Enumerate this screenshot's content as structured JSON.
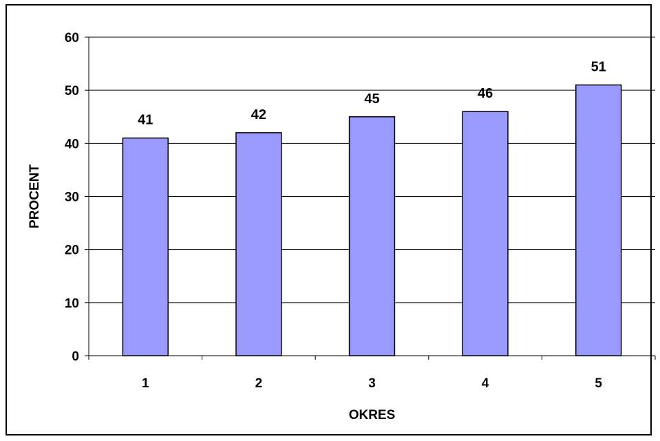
{
  "colors": {
    "bar_fill": "#9999ff",
    "bar_stroke": "#000000",
    "gridline": "#000000",
    "background": "#ffffff"
  },
  "chart_data": {
    "type": "bar",
    "categories": [
      "1",
      "2",
      "3",
      "4",
      "5"
    ],
    "values": [
      41,
      42,
      45,
      46,
      51
    ],
    "title": "",
    "xlabel": "OKRES",
    "ylabel": "PROCENT",
    "ylim": [
      0,
      60
    ],
    "yticks": [
      0,
      10,
      20,
      30,
      40,
      50,
      60
    ],
    "grid": true,
    "legend": "none",
    "data_labels": true
  }
}
